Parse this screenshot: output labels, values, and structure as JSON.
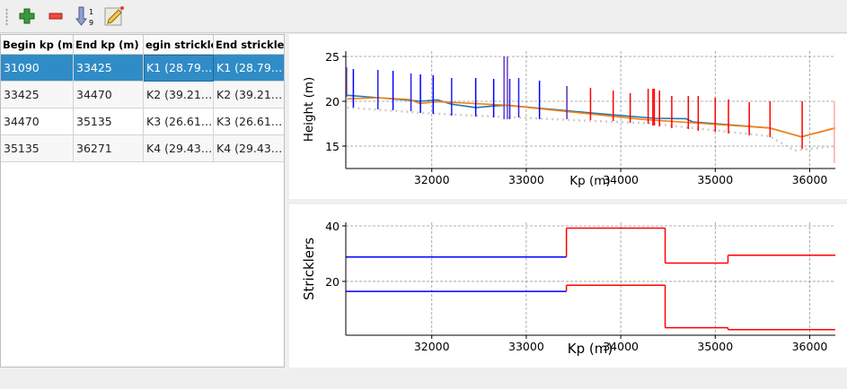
{
  "toolbar": {
    "buttons": [
      {
        "name": "add-row",
        "icon": "plus-icon",
        "color": "#3a9a3a"
      },
      {
        "name": "remove-row",
        "icon": "minus-icon",
        "color": "#e03030"
      },
      {
        "name": "sort",
        "icon": "sort-ascending-icon",
        "label": "1\n9"
      },
      {
        "name": "edit",
        "icon": "edit-note-icon"
      }
    ],
    "sort_top": "1",
    "sort_bottom": "9"
  },
  "table": {
    "columns": [
      "Begin kp (m)",
      "End kp (m)",
      "egin strickle",
      "End strickler"
    ],
    "rows": [
      [
        "31090",
        "33425",
        "K1 (28.79…",
        "K1 (28.79…"
      ],
      [
        "33425",
        "34470",
        "K2 (39.21…",
        "K2 (39.21…"
      ],
      [
        "34470",
        "35135",
        "K3 (26.61…",
        "K3 (26.61…"
      ],
      [
        "35135",
        "36271",
        "K4 (29.43…",
        "K4 (29.43…"
      ]
    ],
    "selected_row": 0,
    "selection_color": "#308cc6"
  },
  "chart_data": [
    {
      "type": "line",
      "xlabel": "Kp (m)",
      "ylabel": "Height (m)",
      "xlim": [
        31090,
        36271
      ],
      "ylim": [
        12.5,
        25.6
      ],
      "xticks": [
        32000,
        33000,
        34000,
        35000,
        36000
      ],
      "yticks": [
        15,
        20,
        25
      ],
      "grid": true,
      "series": [
        {
          "color": "#1f77b4",
          "style": "solid",
          "x": [
            31104,
            31430,
            31800,
            31874,
            32059,
            32207,
            32467,
            32652,
            32800,
            32985,
            33911,
            34356,
            34689,
            34763,
            35578,
            35911,
            36270
          ],
          "y": [
            20.67,
            20.4,
            20.08,
            20.0,
            20.16,
            19.68,
            19.29,
            19.48,
            19.56,
            19.37,
            18.49,
            18.1,
            18.06,
            17.7,
            17.02,
            16.03,
            17.02
          ]
        },
        {
          "color": "#ff7f0e",
          "style": "solid",
          "x": [
            31104,
            31430,
            31763,
            31874,
            32059,
            32800,
            34226,
            35578,
            35911,
            36270
          ],
          "y": [
            20.27,
            20.4,
            20.2,
            19.76,
            19.96,
            19.56,
            17.98,
            17.02,
            16.03,
            17.02
          ]
        },
        {
          "color": "#cccccc",
          "style": "dotted",
          "x": [
            31104,
            32059,
            33541,
            34282,
            35578,
            35837,
            36270
          ],
          "y": [
            19.29,
            18.6,
            17.88,
            17.56,
            16.1,
            14.5,
            15.0
          ]
        }
      ],
      "bars": [
        {
          "x": 31100,
          "top": 23.8,
          "bottom": 20.5,
          "color": "#9060c0"
        },
        {
          "x": 31170,
          "top": 23.6,
          "bottom": 19.3,
          "color": "#0000ff"
        },
        {
          "x": 31430,
          "top": 23.5,
          "bottom": 19.1,
          "color": "#2020ee"
        },
        {
          "x": 31590,
          "top": 23.4,
          "bottom": 19.0,
          "color": "#0000ff"
        },
        {
          "x": 31780,
          "top": 23.1,
          "bottom": 18.9,
          "color": "#2020ee"
        },
        {
          "x": 31880,
          "top": 23.0,
          "bottom": 18.7,
          "color": "#0000ff"
        },
        {
          "x": 32015,
          "top": 22.9,
          "bottom": 18.6,
          "color": "#0000ff"
        },
        {
          "x": 32210,
          "top": 22.6,
          "bottom": 18.4,
          "color": "#2020ee"
        },
        {
          "x": 32465,
          "top": 22.6,
          "bottom": 18.3,
          "color": "#0000ff"
        },
        {
          "x": 32655,
          "top": 22.5,
          "bottom": 18.2,
          "color": "#0000ff"
        },
        {
          "x": 32765,
          "top": 25.0,
          "bottom": 18.0,
          "color": "#6040d0"
        },
        {
          "x": 32800,
          "top": 25.0,
          "bottom": 18.0,
          "color": "#7040c0"
        },
        {
          "x": 32825,
          "top": 22.5,
          "bottom": 18.0,
          "color": "#2020ee"
        },
        {
          "x": 32920,
          "top": 22.6,
          "bottom": 18.2,
          "color": "#2020ee"
        },
        {
          "x": 33140,
          "top": 22.3,
          "bottom": 18.0,
          "color": "#0000ff"
        },
        {
          "x": 33430,
          "top": 21.7,
          "bottom": 18.0,
          "color": "#6030b0"
        },
        {
          "x": 33680,
          "top": 21.5,
          "bottom": 17.9,
          "color": "#ff0000"
        },
        {
          "x": 33920,
          "top": 21.2,
          "bottom": 17.8,
          "color": "#ff0000"
        },
        {
          "x": 34100,
          "top": 20.9,
          "bottom": 17.6,
          "color": "#ff0000"
        },
        {
          "x": 34290,
          "top": 21.4,
          "bottom": 17.5,
          "color": "#ff0000"
        },
        {
          "x": 34340,
          "top": 21.4,
          "bottom": 17.3,
          "color": "#ff0000"
        },
        {
          "x": 34355,
          "top": 21.4,
          "bottom": 17.3,
          "color": "#ff0000"
        },
        {
          "x": 34410,
          "top": 21.2,
          "bottom": 17.2,
          "color": "#ff0000"
        },
        {
          "x": 34540,
          "top": 20.6,
          "bottom": 17.0,
          "color": "#ff0000"
        },
        {
          "x": 34715,
          "top": 20.6,
          "bottom": 16.9,
          "color": "#ff0000"
        },
        {
          "x": 34820,
          "top": 20.6,
          "bottom": 16.7,
          "color": "#ff0000"
        },
        {
          "x": 35000,
          "top": 20.4,
          "bottom": 16.6,
          "color": "#ff0000"
        },
        {
          "x": 35140,
          "top": 20.2,
          "bottom": 16.4,
          "color": "#ff0000"
        },
        {
          "x": 35360,
          "top": 19.9,
          "bottom": 16.2,
          "color": "#ff0000"
        },
        {
          "x": 35580,
          "top": 20.0,
          "bottom": 16.0,
          "color": "#ff0000"
        },
        {
          "x": 35920,
          "top": 20.0,
          "bottom": 14.7,
          "color": "#ff0000"
        },
        {
          "x": 36260,
          "top": 20.0,
          "bottom": 13.1,
          "color": "#ffaaaa"
        }
      ]
    },
    {
      "type": "line",
      "xlabel": "Kp (m)",
      "ylabel": "Stricklers",
      "xlim": [
        31090,
        36271
      ],
      "ylim": [
        0.6,
        41.3
      ],
      "xticks": [
        32000,
        33000,
        34000,
        35000,
        36000
      ],
      "yticks": [
        20,
        40
      ],
      "grid": true,
      "steps": [
        {
          "segments": [
            {
              "x0": 31090,
              "x1": 33425,
              "y": 28.79,
              "color": "#0000ff"
            },
            {
              "x0": 33425,
              "x1": 34470,
              "y": 39.21,
              "color": "#ff0000"
            },
            {
              "x0": 34470,
              "x1": 35135,
              "y": 26.61,
              "color": "#ff0000"
            },
            {
              "x0": 35135,
              "x1": 36271,
              "y": 29.43,
              "color": "#ff0000"
            }
          ]
        },
        {
          "segments": [
            {
              "x0": 31090,
              "x1": 33425,
              "y": 16.4,
              "color": "#0000ff"
            },
            {
              "x0": 33425,
              "x1": 34470,
              "y": 18.6,
              "color": "#ff0000"
            },
            {
              "x0": 34470,
              "x1": 35135,
              "y": 3.3,
              "color": "#ff0000"
            },
            {
              "x0": 35135,
              "x1": 36271,
              "y": 2.6,
              "color": "#ff0000"
            }
          ]
        }
      ]
    }
  ]
}
